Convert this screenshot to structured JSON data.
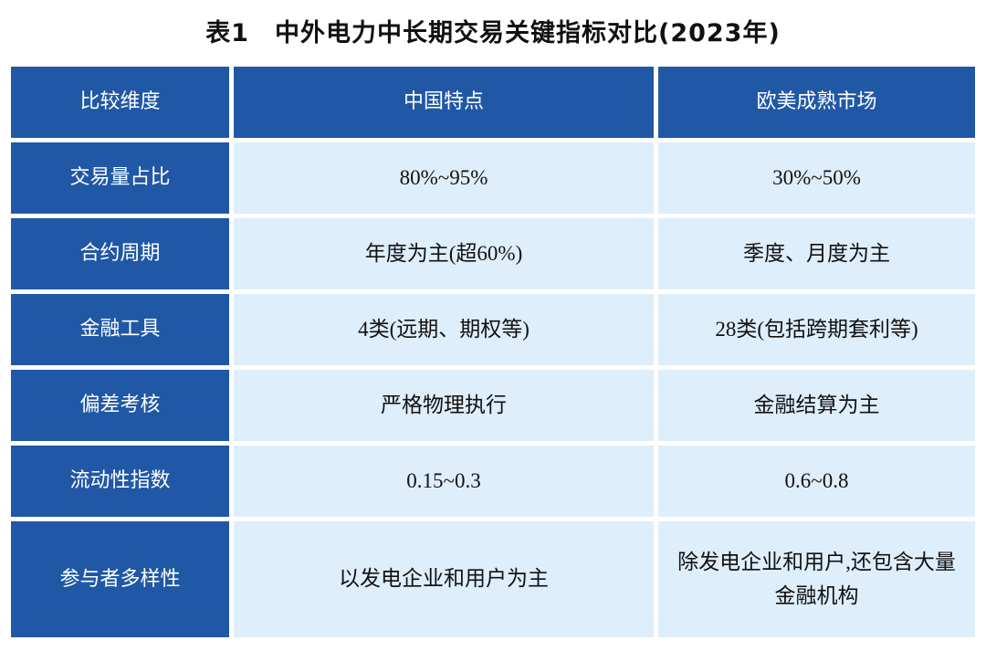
{
  "title": "表1　中外电力中长期交易关键指标对比(2023年)",
  "headers": [
    "比较维度",
    "中国特点",
    "欧美成熟市场"
  ],
  "rows": [
    [
      "交易量占比",
      "80%~95%",
      "30%~50%"
    ],
    [
      "合约周期",
      "年度为主(超60%)",
      "季度、月度为主"
    ],
    [
      "金融工具",
      "4类(远期、期权等)",
      "28类(包括跨期套利等)"
    ],
    [
      "偏差考核",
      "严格物理执行",
      "金融结算为主"
    ],
    [
      "流动性指数",
      "0.15~0.3",
      "0.6~0.8"
    ],
    [
      "参与者多样性",
      "以发电企业和用户为主",
      "除发电企业和用户,还包含大量金融机构"
    ]
  ],
  "colors": {
    "header_bg": "#2058a5",
    "cell_bg": "#dfeefb"
  }
}
